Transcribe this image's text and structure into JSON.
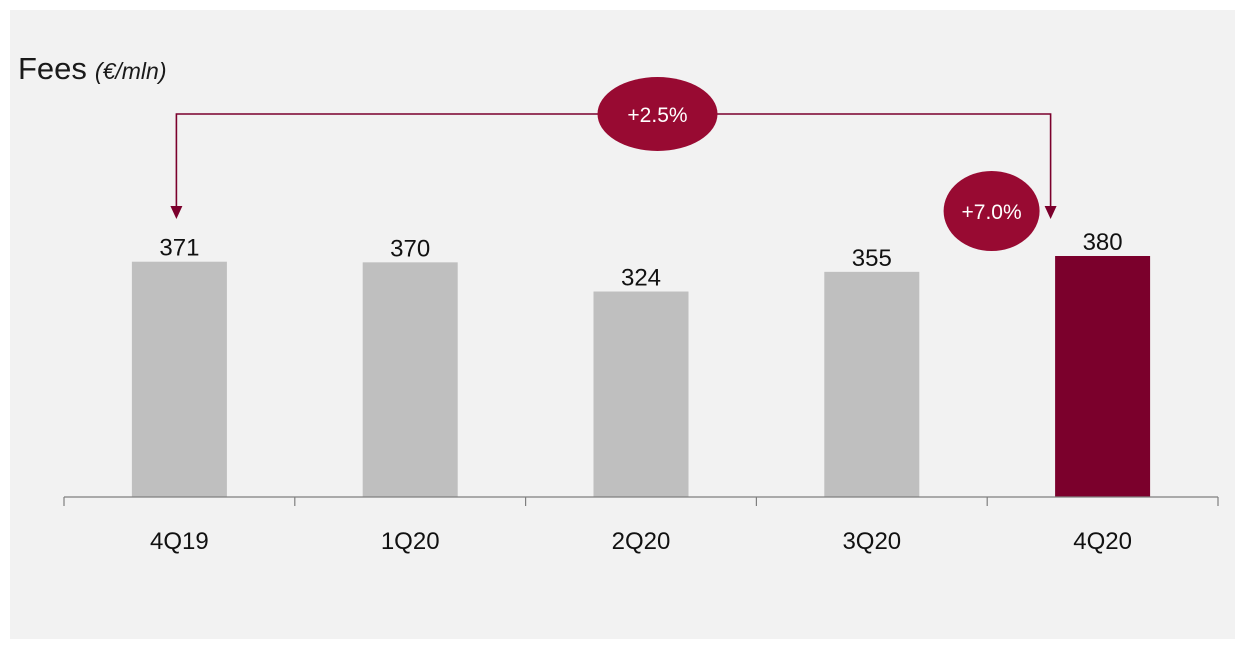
{
  "title": {
    "main": "Fees",
    "unit": "(€/mln)"
  },
  "chart_data": {
    "type": "bar",
    "categories": [
      "4Q19",
      "1Q20",
      "2Q20",
      "3Q20",
      "4Q20"
    ],
    "values": [
      371,
      370,
      324,
      355,
      380
    ],
    "title": "Fees (€/mln)",
    "xlabel": "",
    "ylabel": "",
    "ylim": [
      0,
      380
    ],
    "grid": false,
    "highlight_index": 4
  },
  "annotations": {
    "yoy": {
      "label": "+2.5%",
      "from": "4Q19",
      "to": "4Q20"
    },
    "qoq": {
      "label": "+7.0%",
      "at": "4Q20"
    }
  },
  "colors": {
    "bar_default": "#bfbfbf",
    "bar_highlight": "#7b002c",
    "badge": "#980a32",
    "arrow": "#7b002c",
    "axis": "#7f7f7f",
    "background": "#f2f2f2"
  }
}
